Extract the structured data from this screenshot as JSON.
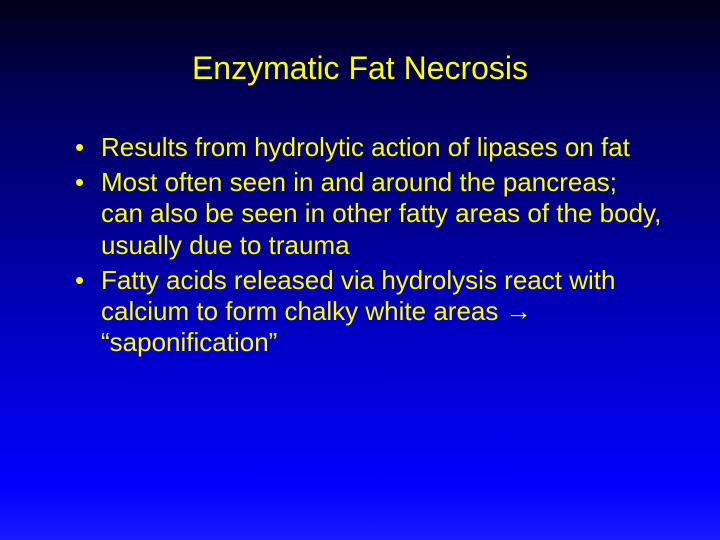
{
  "slide": {
    "background_top": "#000018",
    "background_bottom": "#0000ff",
    "text_color": "#ffff00",
    "title": "Enzymatic Fat Necrosis",
    "title_fontsize": 32,
    "body_fontsize": 26,
    "bullets": [
      "Results from hydrolytic action of lipases on fat",
      "Most often seen in and around the pancreas; can also be seen in other fatty areas of the body, usually due to trauma",
      "Fatty acids released via hydrolysis react with calcium to form chalky white areas → “saponification”"
    ]
  }
}
